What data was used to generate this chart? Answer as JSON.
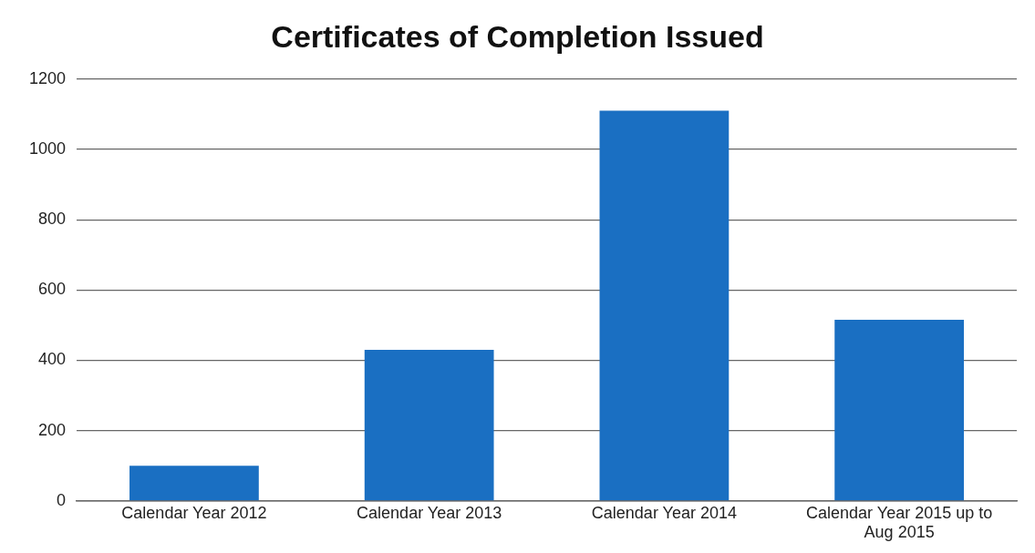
{
  "chart_data": {
    "type": "bar",
    "title": "Certificates of Completion Issued",
    "categories": [
      "Calendar Year 2012",
      "Calendar Year 2013",
      "Calendar Year 2014",
      "Calendar Year 2015 up to Aug 2015"
    ],
    "values": [
      100,
      430,
      1110,
      515
    ],
    "color": "#1a6fc2",
    "ylim": [
      0,
      1200
    ],
    "yticks": [
      0,
      200,
      400,
      600,
      800,
      1000,
      1200
    ],
    "grid": "y",
    "legend": false
  }
}
